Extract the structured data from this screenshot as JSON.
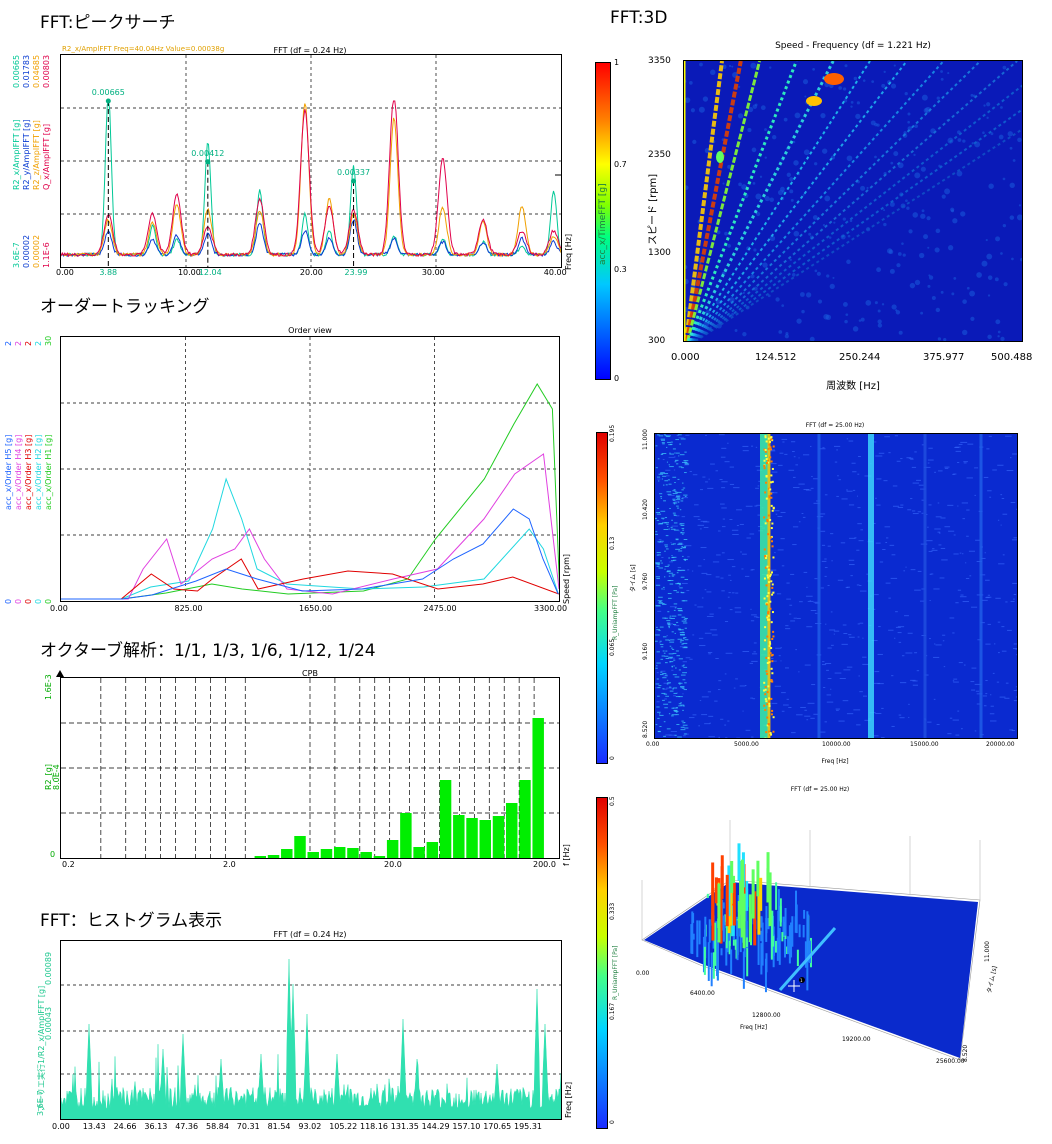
{
  "sections": {
    "peak": "FFT:ピークサーチ",
    "order": "オーダートラッキング",
    "octave": "オクターブ解析：1/1, 1/3, 1/6, 1/12, 1/24",
    "hist": "FFT：ヒストグラム表示",
    "three_d": "FFT:3D"
  },
  "peak_chart": {
    "title": "FFT (df = 0.24 Hz)",
    "cursor_text": "R2_x/AmplFFT  Freq=40.04Hz  Value=0.00038g",
    "xlabel": "Freq [Hz]",
    "x_ticks": [
      "0.00",
      "10.00",
      "20.00",
      "30.00",
      "40.00"
    ],
    "x_marked": [
      "3.88",
      "12.04",
      "23.99"
    ],
    "left_labels": [
      {
        "top": "0.00665",
        "name": "R2_x/AmplFFT [g]",
        "bottom": "3.6E-7",
        "color": "#00c896"
      },
      {
        "top": "0.01783",
        "name": "R2_y/AmplFFT [g]",
        "bottom": "0.00002",
        "color": "#0a3cd2"
      },
      {
        "top": "0.04685",
        "name": "R2_z/AmplFFT [g]",
        "bottom": "0.00002",
        "color": "#f0a000"
      },
      {
        "top": "0.00803",
        "name": "Q_x/AmplFFT [g]",
        "bottom": "1.1E-6",
        "color": "#e0004a"
      }
    ],
    "peaks": [
      {
        "x": "3.88",
        "label": "0.00665"
      },
      {
        "x": "12.04",
        "label": "0.00412"
      },
      {
        "x": "23.99",
        "label": "0.00337"
      }
    ]
  },
  "order_chart": {
    "title": "Order view",
    "xlabel": "Speed [rpm]",
    "x_ticks": [
      "0.00",
      "825.00",
      "1650.00",
      "2475.00",
      "3300.00"
    ],
    "axes": [
      {
        "name": "acc_x/Order H5 [g]",
        "top": "2",
        "bottom": "0",
        "color": "#1e64ff"
      },
      {
        "name": "acc_x/Order H4 [g]",
        "top": "2",
        "bottom": "0",
        "color": "#e040e0"
      },
      {
        "name": "acc_x/Order H3 [g]",
        "top": "2",
        "bottom": "0",
        "color": "#e00000"
      },
      {
        "name": "acc_x/Order H2 [g]",
        "top": "2",
        "bottom": "0",
        "color": "#20d8e0"
      },
      {
        "name": "acc_x/Order H1 [g]",
        "top": "30",
        "bottom": "0",
        "color": "#22cc22"
      }
    ]
  },
  "octave_chart": {
    "title": "CPB",
    "xlabel": "f [Hz]",
    "x_ticks": [
      "0.2",
      "2.0",
      "20.0",
      "200.0"
    ],
    "ylabel": "R2_[g]",
    "y_top": "1.6E-3",
    "y_mid": "8.0E-4",
    "y_bottom": "0",
    "color": "#00ee00"
  },
  "hist_chart": {
    "title": "FFT (df = 0.24 Hz)",
    "xlabel": "Freq [Hz]",
    "x_ticks": [
      "0.00",
      "13.43",
      "24.66",
      "36.13",
      "47.36",
      "58.84",
      "70.31",
      "81.54",
      "93.02",
      "105.22",
      "118.16",
      "131.35",
      "144.29",
      "157.10",
      "170.65",
      "195.31"
    ],
    "ylabel": "フーリエ実行1/R2_x/AmplFFT [g]",
    "y_top": "0.00089",
    "y_mid": "0.00043",
    "y_bottom": "3.6E-7",
    "color": "#30e0b0"
  },
  "map3d_chart": {
    "title": "Speed - Frequency (df = 1.221 Hz)",
    "xlabel": "周波数 [Hz]",
    "ylabel": "スピード [rpm]",
    "x_ticks": [
      "0.000",
      "124.512",
      "250.244",
      "375.977",
      "500.488"
    ],
    "y_ticks": [
      "3350",
      "2350",
      "1300",
      "300"
    ],
    "cbar_label": "acc_x/TimeFFT [g]",
    "cbar_ticks": [
      "1",
      "0.7",
      "0.3",
      "0"
    ]
  },
  "spectrogram_chart": {
    "title": "FFT (df = 25.00 Hz)",
    "xlabel": "Freq [Hz]",
    "ylabel": "タイム [s]",
    "x_ticks": [
      "0.00",
      "5000.00",
      "10000.00",
      "15000.00",
      "20000.00"
    ],
    "y_ticks": [
      "11.000",
      "10.420",
      "9.760",
      "9.160",
      "8.520"
    ],
    "cbar_label": "R_UniampFFT [Pa]",
    "cbar_ticks": [
      "0.195",
      "0.13",
      "0.065",
      "0"
    ]
  },
  "waterfall_chart": {
    "title": "FFT (df = 25.00 Hz)",
    "xlabel": "Freq [Hz]",
    "ylabel": "タイム [s]",
    "x_ticks": [
      "0.00",
      "6400.00",
      "12800.00",
      "19200.00",
      "25600.00"
    ],
    "y_ticks": [
      "11.000",
      "8.520"
    ],
    "cbar_label": "R_UniampFFT [Pa]",
    "cbar_ticks": [
      "0.5",
      "0.333",
      "0.167",
      "0"
    ],
    "marker": "1"
  }
}
